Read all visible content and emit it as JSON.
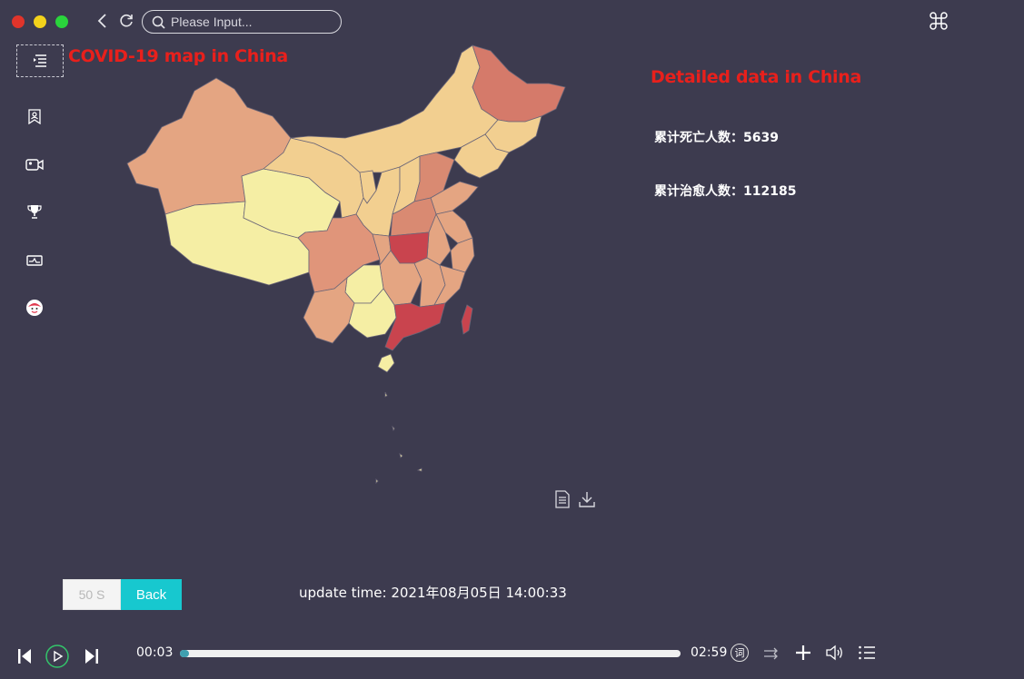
{
  "window": {
    "search_placeholder": "Please Input..."
  },
  "map_panel": {
    "title": "COVID-19 map in China"
  },
  "detail_panel": {
    "title": "Detailed data in China",
    "stats": [
      {
        "label": "累计死亡人数：",
        "value": "5639"
      },
      {
        "label": "累计治愈人数：",
        "value": "112185"
      }
    ]
  },
  "controls": {
    "countdown_label": "50 S",
    "back_label": "Back",
    "update_time": "update time: 2021年08月05日 14:00:33"
  },
  "player": {
    "current_time": "00:03",
    "total_time": "02:59",
    "lyrics_badge": "词",
    "progress": 0.017
  },
  "icons": {
    "top": [
      "back-icon",
      "refresh-icon",
      "search-icon",
      "command-icon"
    ],
    "sidebar": [
      "menu-icon",
      "bookmark-user-icon",
      "video-camera-icon",
      "trophy-icon",
      "monitor-icon",
      "avatar-icon"
    ],
    "map_tools": [
      "data-view-icon",
      "download-icon"
    ],
    "player": [
      "skip-previous-icon",
      "play-icon",
      "skip-next-icon",
      "lyrics-icon",
      "loop-icon",
      "add-icon",
      "volume-icon",
      "playlist-icon"
    ]
  },
  "colors": {
    "background": "#3d3b4f",
    "title_red": "#e8201c",
    "back_button": "#17c8cf",
    "map_low": "#f5eea4",
    "map_mid": "#e6a882",
    "map_high": "#c9444e"
  }
}
